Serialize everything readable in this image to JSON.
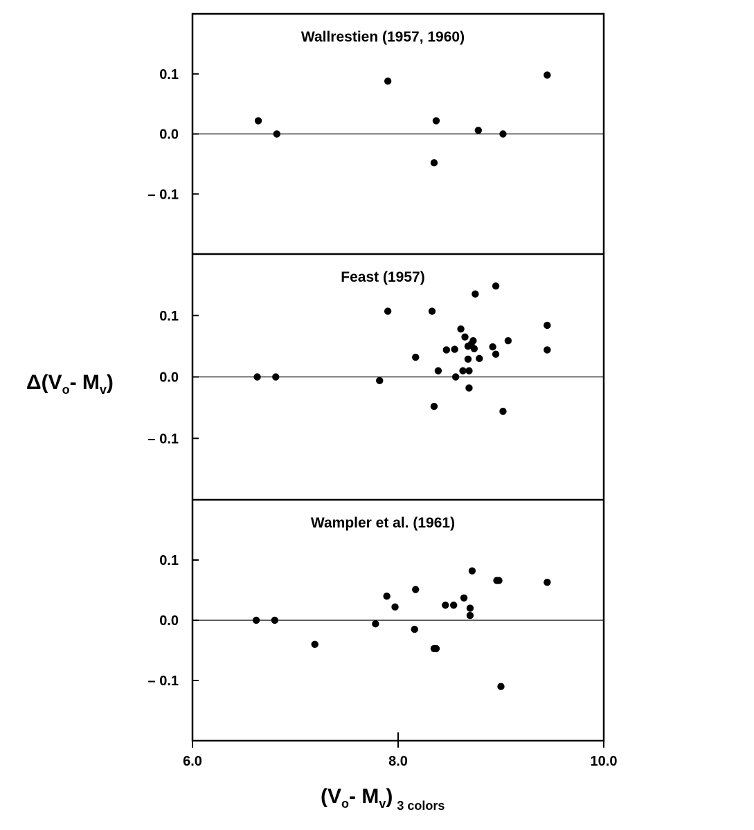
{
  "chart_data": [
    {
      "type": "scatter",
      "title": "Wallrestien (1957, 1960)",
      "xlim": [
        6.0,
        10.0
      ],
      "ylim": [
        -0.2,
        0.2
      ],
      "x": [
        6.64,
        6.82,
        7.9,
        8.35,
        8.37,
        8.78,
        9.02,
        9.45
      ],
      "y": [
        0.022,
        0.0,
        0.088,
        -0.048,
        0.022,
        0.006,
        0.0,
        0.098
      ]
    },
    {
      "type": "scatter",
      "title": "Feast (1957)",
      "xlim": [
        6.0,
        10.0
      ],
      "ylim": [
        -0.2,
        0.2
      ],
      "x": [
        6.63,
        6.81,
        7.82,
        7.9,
        8.17,
        8.33,
        8.35,
        8.39,
        8.47,
        8.55,
        8.56,
        8.61,
        8.63,
        8.65,
        8.68,
        8.68,
        8.69,
        8.69,
        8.71,
        8.73,
        8.74,
        8.75,
        8.79,
        8.92,
        8.95,
        8.95,
        9.07,
        9.02,
        9.45,
        9.45
      ],
      "y": [
        0.0,
        0.0,
        -0.006,
        0.107,
        0.032,
        0.107,
        -0.048,
        0.01,
        0.044,
        0.045,
        0.0,
        0.078,
        0.01,
        0.065,
        0.05,
        0.029,
        0.01,
        -0.018,
        0.053,
        0.059,
        0.046,
        0.135,
        0.03,
        0.049,
        0.148,
        0.037,
        0.059,
        -0.056,
        0.084,
        0.044
      ]
    },
    {
      "type": "scatter",
      "title": "Wampler et al. (1961)",
      "xlim": [
        6.0,
        10.0
      ],
      "ylim": [
        -0.2,
        0.2
      ],
      "x": [
        6.62,
        6.8,
        7.19,
        7.78,
        7.89,
        7.97,
        8.16,
        8.17,
        8.35,
        8.37,
        8.46,
        8.54,
        8.64,
        8.7,
        8.7,
        8.72,
        8.96,
        8.98,
        9.0,
        9.45
      ],
      "y": [
        0.0,
        0.0,
        -0.04,
        -0.006,
        0.04,
        0.022,
        -0.015,
        0.051,
        -0.047,
        -0.047,
        0.025,
        0.025,
        0.037,
        0.02,
        0.008,
        0.082,
        0.066,
        0.066,
        -0.11,
        0.063
      ]
    }
  ],
  "axes": {
    "y_ticks": [
      {
        "value": 0.1,
        "label": "0.1"
      },
      {
        "value": 0.0,
        "label": "0.0"
      },
      {
        "value": -0.1,
        "label": "– 0.1"
      }
    ],
    "x_ticks": [
      {
        "value": 6.0,
        "label": "6.0"
      },
      {
        "value": 8.0,
        "label": "8.0"
      },
      {
        "value": 10.0,
        "label": "10.0"
      }
    ],
    "ylabel": {
      "prefix": "Δ(V",
      "sub1": "o",
      "mid": "- M",
      "sub2": "v",
      "suffix": ")"
    },
    "xlabel": {
      "prefix": "(V",
      "sub1": "o",
      "mid": "- M",
      "sub2": "v",
      "suffix": ")",
      "sub3": "3 colors"
    }
  }
}
